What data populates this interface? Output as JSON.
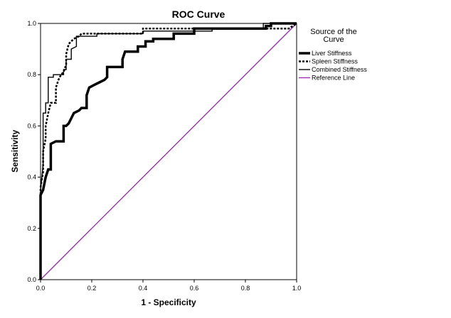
{
  "chart_data": {
    "type": "line",
    "title": "ROC Curve",
    "xlabel": "1 - Specificity",
    "ylabel": "Sensitivity",
    "xlim": [
      0,
      1
    ],
    "ylim": [
      0,
      1
    ],
    "x_ticks": [
      "0.0",
      "0.2",
      "0.4",
      "0.6",
      "0.8",
      "1.0"
    ],
    "y_ticks": [
      "0.0",
      "0.2",
      "0.4",
      "0.6",
      "0.8",
      "1.0"
    ],
    "grid": false,
    "legend": {
      "title_line1": "Source of the",
      "title_line2": "Curve",
      "placement": "right"
    },
    "series": [
      {
        "name": "Liver Stiffness",
        "style": "thick-solid",
        "color": "#000000",
        "points": [
          [
            0,
            0
          ],
          [
            0,
            0.33
          ],
          [
            0.01,
            0.35
          ],
          [
            0.02,
            0.4
          ],
          [
            0.03,
            0.43
          ],
          [
            0.04,
            0.43
          ],
          [
            0.04,
            0.53
          ],
          [
            0.06,
            0.54
          ],
          [
            0.07,
            0.54
          ],
          [
            0.09,
            0.54
          ],
          [
            0.09,
            0.6
          ],
          [
            0.1,
            0.6
          ],
          [
            0.11,
            0.61
          ],
          [
            0.12,
            0.63
          ],
          [
            0.13,
            0.65
          ],
          [
            0.15,
            0.66
          ],
          [
            0.16,
            0.67
          ],
          [
            0.18,
            0.67
          ],
          [
            0.18,
            0.72
          ],
          [
            0.19,
            0.75
          ],
          [
            0.21,
            0.76
          ],
          [
            0.23,
            0.77
          ],
          [
            0.25,
            0.78
          ],
          [
            0.26,
            0.79
          ],
          [
            0.26,
            0.83
          ],
          [
            0.32,
            0.83
          ],
          [
            0.32,
            0.86
          ],
          [
            0.33,
            0.89
          ],
          [
            0.38,
            0.89
          ],
          [
            0.38,
            0.91
          ],
          [
            0.41,
            0.91
          ],
          [
            0.41,
            0.93
          ],
          [
            0.44,
            0.93
          ],
          [
            0.44,
            0.94
          ],
          [
            0.52,
            0.94
          ],
          [
            0.52,
            0.96
          ],
          [
            0.6,
            0.96
          ],
          [
            0.6,
            0.98
          ],
          [
            0.88,
            0.98
          ],
          [
            0.88,
            0.99
          ],
          [
            0.9,
            0.99
          ],
          [
            0.9,
            1.0
          ],
          [
            1,
            1
          ]
        ]
      },
      {
        "name": "Spleen Stiffness",
        "style": "dotted",
        "color": "#000000",
        "points": [
          [
            0,
            0
          ],
          [
            0,
            0.36
          ],
          [
            0.01,
            0.42
          ],
          [
            0.01,
            0.5
          ],
          [
            0.02,
            0.55
          ],
          [
            0.02,
            0.6
          ],
          [
            0.03,
            0.65
          ],
          [
            0.04,
            0.69
          ],
          [
            0.06,
            0.69
          ],
          [
            0.06,
            0.75
          ],
          [
            0.07,
            0.78
          ],
          [
            0.08,
            0.8
          ],
          [
            0.09,
            0.81
          ],
          [
            0.1,
            0.84
          ],
          [
            0.1,
            0.88
          ],
          [
            0.11,
            0.92
          ],
          [
            0.13,
            0.94
          ],
          [
            0.15,
            0.95
          ],
          [
            0.16,
            0.96
          ],
          [
            0.4,
            0.96
          ],
          [
            0.4,
            0.98
          ],
          [
            0.69,
            0.98
          ],
          [
            0.97,
            0.98
          ],
          [
            1,
            1
          ]
        ]
      },
      {
        "name": "Combined Stiffness",
        "style": "thin-solid",
        "color": "#000000",
        "points": [
          [
            0,
            0
          ],
          [
            0,
            0.35
          ],
          [
            0.01,
            0.45
          ],
          [
            0.01,
            0.65
          ],
          [
            0.02,
            0.65
          ],
          [
            0.02,
            0.69
          ],
          [
            0.03,
            0.69
          ],
          [
            0.03,
            0.72
          ],
          [
            0.03,
            0.79
          ],
          [
            0.05,
            0.79
          ],
          [
            0.05,
            0.8
          ],
          [
            0.09,
            0.8
          ],
          [
            0.09,
            0.82
          ],
          [
            0.1,
            0.82
          ],
          [
            0.1,
            0.86
          ],
          [
            0.12,
            0.86
          ],
          [
            0.12,
            0.9
          ],
          [
            0.14,
            0.91
          ],
          [
            0.14,
            0.95
          ],
          [
            0.22,
            0.95
          ],
          [
            0.22,
            0.96
          ],
          [
            0.4,
            0.96
          ],
          [
            0.4,
            0.97
          ],
          [
            0.67,
            0.97
          ],
          [
            0.67,
            0.98
          ],
          [
            0.87,
            0.98
          ],
          [
            0.87,
            1.0
          ],
          [
            1,
            1
          ]
        ]
      },
      {
        "name": "Reference Line",
        "style": "thin-solid",
        "color": "#9933aa",
        "points": [
          [
            0,
            0
          ],
          [
            1,
            1
          ]
        ]
      }
    ]
  }
}
